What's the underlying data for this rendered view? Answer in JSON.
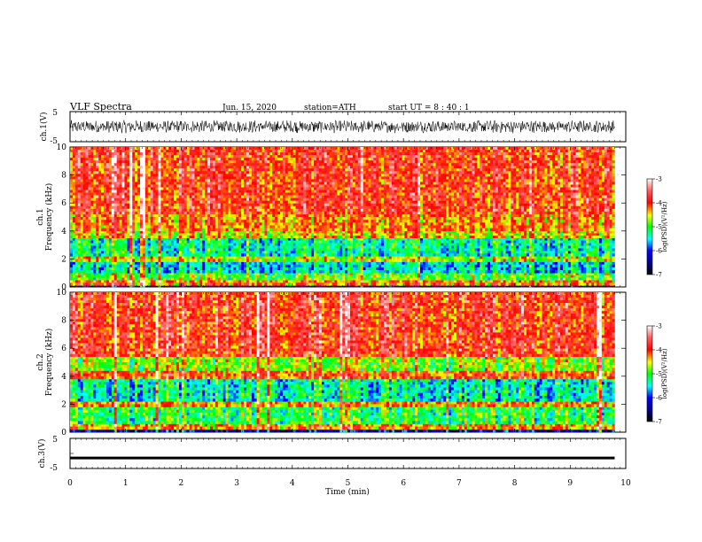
{
  "header": {
    "title": "VLF  Spectra",
    "date": "Jun. 15, 2020",
    "station": "station=ATH",
    "start_ut": "start  UT  =   8 : 40 : 1"
  },
  "chart_data": [
    {
      "type": "line",
      "id": "ch1-waveform",
      "ylabel": "ch.1(V)",
      "ylim": [
        -5,
        5
      ],
      "yticks": [
        "5",
        "-5"
      ],
      "description_series": "dense broadband waveform oscillating roughly between -2 and +2 V across the full record",
      "x_range_min": [
        0,
        9.8
      ]
    },
    {
      "type": "heatmap",
      "id": "ch1-spectrogram",
      "ylabel_top": "ch.1",
      "ylabel": "Frequency  (kHz)",
      "ylim": [
        0,
        10
      ],
      "yticks": [
        "0",
        "2",
        "4",
        "6",
        "8",
        "10"
      ],
      "x_range_min": [
        0,
        9.8
      ],
      "colorbar": {
        "label": "log(PSD)(V²/Hz)",
        "range": [
          -7,
          -3
        ],
        "ticks": [
          "-3",
          "-4",
          "-5",
          "-6",
          "-7"
        ]
      },
      "bands": [
        {
          "f_low": 0.0,
          "f_high": 0.1,
          "log_psd": -6.5
        },
        {
          "f_low": 0.1,
          "f_high": 0.5,
          "log_psd": -4.2
        },
        {
          "f_low": 0.5,
          "f_high": 1.0,
          "log_psd": -4.9
        },
        {
          "f_low": 1.0,
          "f_high": 1.8,
          "log_psd": -5.5
        },
        {
          "f_low": 1.8,
          "f_high": 2.2,
          "log_psd": -4.6
        },
        {
          "f_low": 2.2,
          "f_high": 3.5,
          "log_psd": -5.3
        },
        {
          "f_low": 3.5,
          "f_high": 4.0,
          "log_psd": -4.5
        },
        {
          "f_low": 4.0,
          "f_high": 5.2,
          "log_psd": -4.2
        },
        {
          "f_low": 5.2,
          "f_high": 10.0,
          "log_psd": -3.9
        }
      ]
    },
    {
      "type": "heatmap",
      "id": "ch2-spectrogram",
      "ylabel_top": "ch.2",
      "ylabel": "Frequency  (kHz)",
      "ylim": [
        0,
        10
      ],
      "yticks": [
        "0",
        "2",
        "4",
        "6",
        "8",
        "10"
      ],
      "x_range_min": [
        0,
        9.8
      ],
      "colorbar": {
        "label": "log(PSD)(V²/Hz)",
        "range": [
          -7,
          -3
        ],
        "ticks": [
          "-3",
          "-4",
          "-5",
          "-6",
          "-7"
        ]
      },
      "bands": [
        {
          "f_low": 0.0,
          "f_high": 0.2,
          "log_psd": -6.2
        },
        {
          "f_low": 0.2,
          "f_high": 0.6,
          "log_psd": -4.3
        },
        {
          "f_low": 0.6,
          "f_high": 1.8,
          "log_psd": -5.1
        },
        {
          "f_low": 1.8,
          "f_high": 2.2,
          "log_psd": -4.3
        },
        {
          "f_low": 2.2,
          "f_high": 3.8,
          "log_psd": -5.4
        },
        {
          "f_low": 3.8,
          "f_high": 4.4,
          "log_psd": -4.1
        },
        {
          "f_low": 4.4,
          "f_high": 5.4,
          "log_psd": -4.8
        },
        {
          "f_low": 5.4,
          "f_high": 10.0,
          "log_psd": -3.9
        }
      ]
    },
    {
      "type": "line",
      "id": "ch3-waveform",
      "ylabel": "ch.3(V)",
      "ylim": [
        -5,
        5
      ],
      "yticks": [
        "5",
        "-5"
      ],
      "flat_level_v": -1.5,
      "x_range_min": [
        0,
        9.8
      ]
    }
  ],
  "xaxis": {
    "label": "Time  (min)",
    "ticks": [
      "0",
      "1",
      "2",
      "3",
      "4",
      "5",
      "6",
      "7",
      "8",
      "9",
      "10"
    ],
    "range": [
      0,
      10
    ]
  },
  "colors": {
    "ch1_wave": "#000000",
    "ch3_wave": "#000000"
  }
}
